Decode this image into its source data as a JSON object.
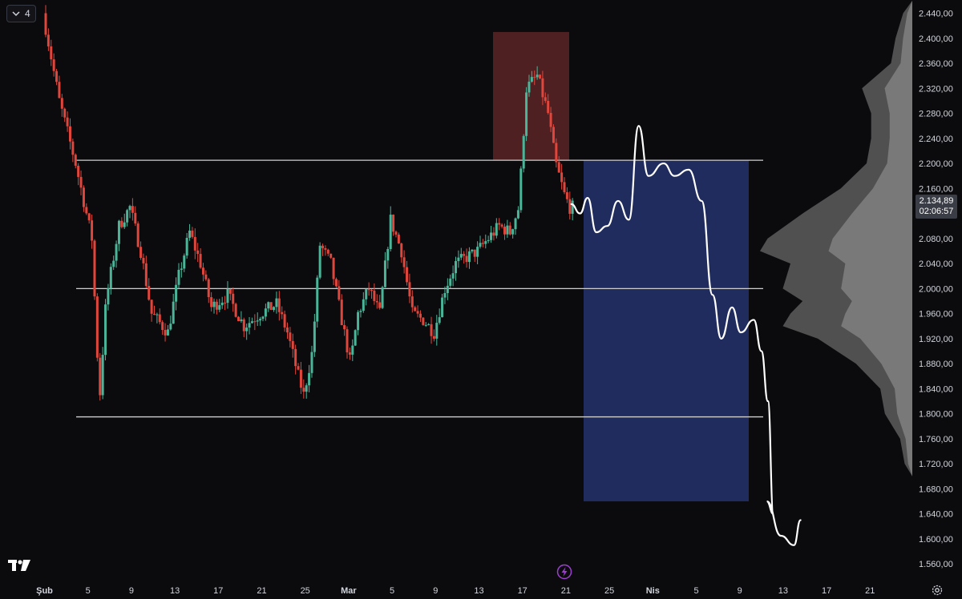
{
  "toolbar": {
    "interval_value": "4"
  },
  "price_label": {
    "price": "2.134,89",
    "countdown": "02:06:57"
  },
  "colors": {
    "background": "#0b0b0d",
    "up": "#4bb59a",
    "down": "#e0463c",
    "level_line": "#cfcfcf",
    "supply_zone": "#5a2527",
    "target_zone": "#223066",
    "projection": "#ffffff",
    "volume_profile": "#8a8a8a"
  },
  "icons": {
    "interval": "chevron-down-icon",
    "logo": "tradingview-logo-icon",
    "flash": "lightning-icon",
    "settings": "gear-icon"
  },
  "chart_data": {
    "type": "candlestick",
    "price_axis": {
      "ticks": [
        "2.440,00",
        "2.400,00",
        "2.360,00",
        "2.320,00",
        "2.280,00",
        "2.240,00",
        "2.200,00",
        "2.160,00",
        "2.120,00",
        "2.080,00",
        "2.040,00",
        "2.000,00",
        "1.960,00",
        "1.920,00",
        "1.880,00",
        "1.840,00",
        "1.800,00",
        "1.760,00",
        "1.720,00",
        "1.680,00",
        "1.640,00",
        "1.600,00",
        "1.560,00"
      ],
      "range": [
        1540,
        2460
      ]
    },
    "time_axis": {
      "ticks": [
        "Şub",
        "5",
        "9",
        "13",
        "17",
        "21",
        "25",
        "Mar",
        "5",
        "9",
        "13",
        "17",
        "21",
        "25",
        "Nis",
        "5",
        "9",
        "13",
        "17",
        "21"
      ],
      "bold_ticks": [
        "Şub",
        "Mar",
        "Nis"
      ]
    },
    "horizontal_levels": [
      2205,
      2000,
      1795
    ],
    "supply_zone": {
      "price_top": 2410,
      "price_bottom": 2205
    },
    "target_zone": {
      "price_top": 2205,
      "price_bottom": 1660
    },
    "last_price": 2134.89,
    "price_path": [
      [
        0,
        2440
      ],
      [
        1.5,
        2300
      ],
      [
        3,
        2200
      ],
      [
        4.5,
        2080
      ],
      [
        5.2,
        1820
      ],
      [
        5.8,
        1980
      ],
      [
        7,
        2100
      ],
      [
        8,
        2130
      ],
      [
        9,
        2060
      ],
      [
        10,
        1960
      ],
      [
        11.5,
        1930
      ],
      [
        12.5,
        2020
      ],
      [
        13.5,
        2090
      ],
      [
        14.5,
        2040
      ],
      [
        15.5,
        1970
      ],
      [
        17,
        1990
      ],
      [
        18.5,
        1940
      ],
      [
        20,
        1960
      ],
      [
        21.5,
        1975
      ],
      [
        22.5,
        1930
      ],
      [
        23.5,
        1860
      ],
      [
        24,
        1830
      ],
      [
        24.8,
        1900
      ],
      [
        25.5,
        2070
      ],
      [
        26.5,
        2040
      ],
      [
        27.5,
        1950
      ],
      [
        28.3,
        1880
      ],
      [
        29,
        1960
      ],
      [
        30,
        2000
      ],
      [
        31,
        1960
      ],
      [
        32,
        2110
      ],
      [
        33,
        2060
      ],
      [
        34,
        1960
      ],
      [
        35,
        1950
      ],
      [
        36,
        1930
      ],
      [
        37,
        2000
      ],
      [
        38,
        2040
      ],
      [
        39,
        2050
      ],
      [
        40,
        2060
      ],
      [
        41,
        2080
      ],
      [
        42,
        2100
      ],
      [
        43,
        2090
      ],
      [
        43.8,
        2130
      ],
      [
        44.5,
        2320
      ],
      [
        45.5,
        2340
      ],
      [
        46.5,
        2280
      ],
      [
        47.2,
        2200
      ],
      [
        48,
        2150
      ],
      [
        48.5,
        2130
      ]
    ],
    "projection_path": [
      [
        48.5,
        2135
      ],
      [
        49.3,
        2120
      ],
      [
        50,
        2145
      ],
      [
        50.8,
        2090
      ],
      [
        51.8,
        2100
      ],
      [
        52.8,
        2140
      ],
      [
        53.8,
        2110
      ],
      [
        54.7,
        2260
      ],
      [
        55.6,
        2180
      ],
      [
        57,
        2200
      ],
      [
        58,
        2180
      ],
      [
        59.3,
        2190
      ],
      [
        60.5,
        2140
      ],
      [
        61.5,
        1990
      ],
      [
        62.3,
        1920
      ],
      [
        63.3,
        1970
      ],
      [
        64.1,
        1930
      ],
      [
        65.3,
        1950
      ],
      [
        66,
        1900
      ],
      [
        66.6,
        1820
      ],
      [
        67.1,
        1640
      ],
      [
        66.5,
        1660
      ],
      [
        67.8,
        1605
      ],
      [
        69,
        1590
      ],
      [
        69.6,
        1630
      ]
    ],
    "volume_profile": [
      [
        2440,
        0.06
      ],
      [
        2400,
        0.11
      ],
      [
        2360,
        0.14
      ],
      [
        2320,
        0.33
      ],
      [
        2280,
        0.27
      ],
      [
        2240,
        0.27
      ],
      [
        2200,
        0.3
      ],
      [
        2160,
        0.47
      ],
      [
        2120,
        0.72
      ],
      [
        2080,
        0.95
      ],
      [
        2060,
        1.0
      ],
      [
        2040,
        0.8
      ],
      [
        2000,
        0.85
      ],
      [
        1980,
        0.72
      ],
      [
        1960,
        0.8
      ],
      [
        1940,
        0.85
      ],
      [
        1920,
        0.62
      ],
      [
        1880,
        0.37
      ],
      [
        1840,
        0.21
      ],
      [
        1800,
        0.18
      ],
      [
        1760,
        0.08
      ],
      [
        1720,
        0.05
      ]
    ]
  }
}
